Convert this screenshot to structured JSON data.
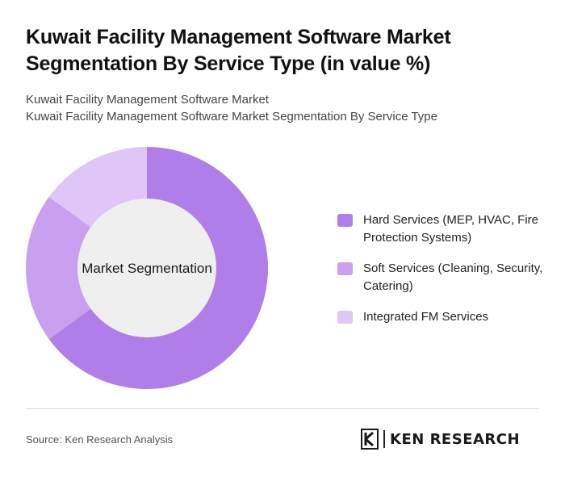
{
  "title": "Kuwait Facility Management Software Market Segmentation By Service Type (in value %)",
  "subtitle_lines": [
    "Kuwait Facility Management Software Market",
    "Kuwait Facility Management Software Market Segmentation By Service Type"
  ],
  "chart_data": {
    "type": "pie",
    "center_label": "Market Segmentation",
    "categories": [
      "Hard Services (MEP, HVAC, Fire Protection Systems)",
      "Soft Services (Cleaning, Security, Catering)",
      "Integrated FM Services"
    ],
    "values": [
      65,
      20,
      15
    ],
    "colors": [
      "#b07ee8",
      "#c9a0f0",
      "#dfc6f6"
    ],
    "donut": true,
    "legend_position": "right"
  },
  "footer": {
    "source": "Source: Ken Research Analysis",
    "logo_text": "KEN RESEARCH"
  }
}
